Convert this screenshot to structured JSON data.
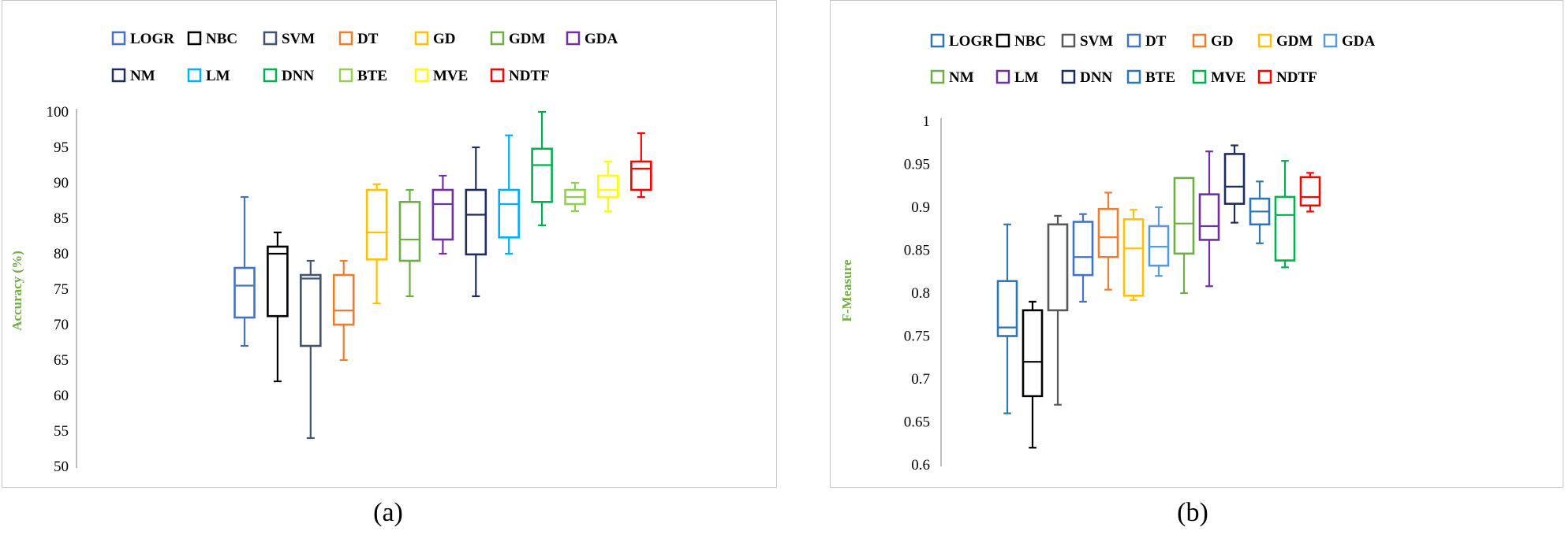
{
  "captions": {
    "a": "(a)",
    "b": "(b)"
  },
  "chart_data": [
    {
      "type": "box",
      "ylabel": "Accuracy (%)",
      "ylabel_color": "#70AD47",
      "ylim": [
        50,
        100
      ],
      "yticks": [
        "50",
        "55",
        "60",
        "65",
        "70",
        "75",
        "80",
        "85",
        "90",
        "95",
        "100"
      ],
      "legend_position": "top",
      "legend_rows": [
        [
          "LOGR",
          "NBC",
          "SVM",
          "DT",
          "GD",
          "GDM",
          "GDA"
        ],
        [
          "NM",
          "LM",
          "DNN",
          "BTE",
          "MVE",
          "NDTF"
        ]
      ],
      "series": [
        {
          "name": "LOGR",
          "color": "#4472C4",
          "min": 67,
          "q1": 71,
          "median": 75.5,
          "q3": 78,
          "max": 88
        },
        {
          "name": "NBC",
          "color": "#000000",
          "min": 62,
          "q1": 71.2,
          "median": 80,
          "q3": 81,
          "max": 83
        },
        {
          "name": "SVM",
          "color": "#44546A",
          "min": 54,
          "q1": 67,
          "median": 76.5,
          "q3": 77,
          "max": 79
        },
        {
          "name": "DT",
          "color": "#ED7D31",
          "min": 65,
          "q1": 70,
          "median": 72,
          "q3": 77,
          "max": 79
        },
        {
          "name": "GD",
          "color": "#FFC000",
          "min": 73,
          "q1": 79.2,
          "median": 83,
          "q3": 89,
          "max": 89.8
        },
        {
          "name": "GDM",
          "color": "#70AD47",
          "min": 74,
          "q1": 79,
          "median": 82,
          "q3": 87.3,
          "max": 89
        },
        {
          "name": "GDA",
          "color": "#7030A0",
          "min": 80,
          "q1": 82,
          "median": 87,
          "q3": 89,
          "max": 91
        },
        {
          "name": "NM",
          "color": "#1F2D5C",
          "min": 74,
          "q1": 79.9,
          "median": 85.5,
          "q3": 89,
          "max": 95
        },
        {
          "name": "LM",
          "color": "#00B0F0",
          "min": 80,
          "q1": 82.3,
          "median": 87,
          "q3": 89,
          "max": 96.7
        },
        {
          "name": "DNN",
          "color": "#00B050",
          "min": 84,
          "q1": 87.3,
          "median": 92.5,
          "q3": 94.8,
          "max": 100
        },
        {
          "name": "BTE",
          "color": "#92D050",
          "min": 86,
          "q1": 87,
          "median": 88,
          "q3": 89,
          "max": 90
        },
        {
          "name": "MVE",
          "color": "#FFFF00",
          "min": 86,
          "q1": 88,
          "median": 89,
          "q3": 91,
          "max": 93
        },
        {
          "name": "NDTF",
          "color": "#FF0000",
          "min": 88,
          "q1": 89,
          "median": 92,
          "q3": 93,
          "max": 97
        }
      ]
    },
    {
      "type": "box",
      "ylabel": "F-Measure",
      "ylabel_color": "#70AD47",
      "ylim": [
        0.6,
        1
      ],
      "yticks": [
        "0.6",
        "0.65",
        "0.7",
        "0.75",
        "0.8",
        "0.85",
        "0.9",
        "0.95",
        "1"
      ],
      "legend_position": "top",
      "legend_rows": [
        [
          "LOGR",
          "NBC",
          "SVM",
          "DT",
          "GD",
          "GDM",
          "GDA"
        ],
        [
          "NM",
          "LM",
          "DNN",
          "BTE",
          "MVE",
          "NDTF"
        ]
      ],
      "series": [
        {
          "name": "LOGR",
          "color": "#2E75B6",
          "min": 0.66,
          "q1": 0.75,
          "median": 0.76,
          "q3": 0.814,
          "max": 0.88
        },
        {
          "name": "NBC",
          "color": "#000000",
          "min": 0.62,
          "q1": 0.68,
          "median": 0.72,
          "q3": 0.78,
          "max": 0.79
        },
        {
          "name": "SVM",
          "color": "#595959",
          "min": 0.67,
          "q1": 0.78,
          "median": 0.78,
          "q3": 0.88,
          "max": 0.89
        },
        {
          "name": "DT",
          "color": "#4472C4",
          "min": 0.79,
          "q1": 0.821,
          "median": 0.842,
          "q3": 0.883,
          "max": 0.892
        },
        {
          "name": "GD",
          "color": "#ED7D31",
          "min": 0.804,
          "q1": 0.842,
          "median": 0.865,
          "q3": 0.898,
          "max": 0.917
        },
        {
          "name": "GDM",
          "color": "#FFC000",
          "min": 0.792,
          "q1": 0.797,
          "median": 0.852,
          "q3": 0.886,
          "max": 0.897
        },
        {
          "name": "GDA",
          "color": "#5B9BD5",
          "min": 0.82,
          "q1": 0.832,
          "median": 0.854,
          "q3": 0.878,
          "max": 0.9
        },
        {
          "name": "NM",
          "color": "#70AD47",
          "min": 0.8,
          "q1": 0.846,
          "median": 0.881,
          "q3": 0.934,
          "max": 0.934
        },
        {
          "name": "LM",
          "color": "#7030A0",
          "min": 0.808,
          "q1": 0.862,
          "median": 0.878,
          "q3": 0.915,
          "max": 0.965
        },
        {
          "name": "DNN",
          "color": "#1F2D5C",
          "min": 0.882,
          "q1": 0.904,
          "median": 0.924,
          "q3": 0.962,
          "max": 0.972
        },
        {
          "name": "BTE",
          "color": "#2E75B6",
          "min": 0.858,
          "q1": 0.88,
          "median": 0.895,
          "q3": 0.91,
          "max": 0.93
        },
        {
          "name": "MVE",
          "color": "#00B050",
          "min": 0.83,
          "q1": 0.838,
          "median": 0.891,
          "q3": 0.912,
          "max": 0.954
        },
        {
          "name": "NDTF",
          "color": "#FF0000",
          "min": 0.895,
          "q1": 0.902,
          "median": 0.912,
          "q3": 0.935,
          "max": 0.94
        }
      ]
    }
  ]
}
